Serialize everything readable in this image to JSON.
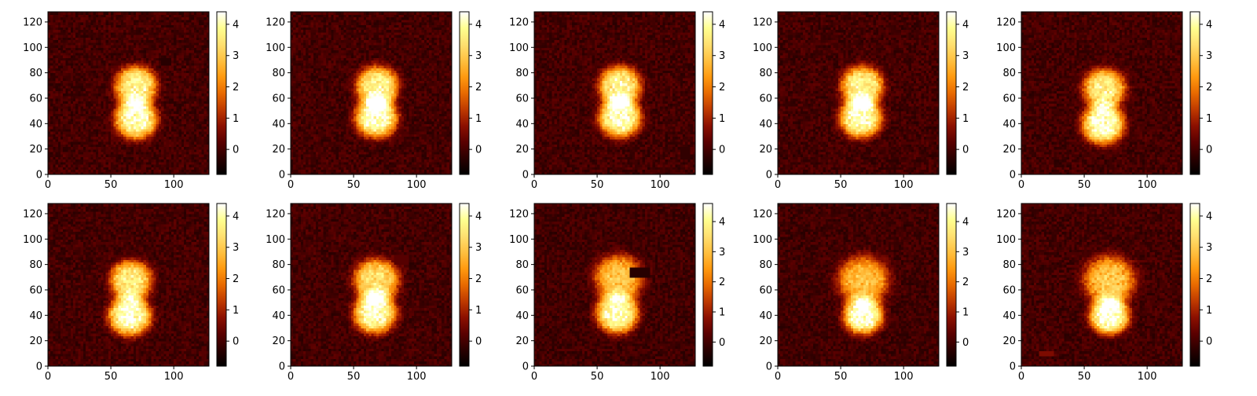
{
  "figure": {
    "cmap": [
      "#000000",
      "#2a0000",
      "#5a0000",
      "#8c1000",
      "#bf3a00",
      "#e86a00",
      "#ff9a10",
      "#ffc040",
      "#ffe070",
      "#ffff90",
      "#ffffff"
    ]
  },
  "chart_data": [
    {
      "type": "heatmap",
      "row": 0,
      "col": 0,
      "xlim": [
        0,
        128
      ],
      "ylim": [
        0,
        128
      ],
      "xticks": [
        0,
        50,
        100
      ],
      "yticks": [
        0,
        20,
        40,
        60,
        80,
        100,
        120
      ],
      "cbar_ticks": [
        0,
        1,
        2,
        3,
        4
      ],
      "clim": [
        -0.8,
        4.4
      ],
      "blobs": [
        {
          "x": 70,
          "y": 44,
          "sx": 14,
          "sy": 13,
          "amp": 4.2
        },
        {
          "x": 70,
          "y": 70,
          "sx": 14,
          "sy": 13,
          "amp": 3.8
        }
      ],
      "artifacts": [
        {
          "x0": 90,
          "x1": 98,
          "y0": 87,
          "y1": 91,
          "v": -0.3
        }
      ]
    },
    {
      "type": "heatmap",
      "row": 0,
      "col": 1,
      "xlim": [
        0,
        128
      ],
      "ylim": [
        0,
        128
      ],
      "xticks": [
        0,
        50,
        100
      ],
      "yticks": [
        0,
        20,
        40,
        60,
        80,
        100,
        120
      ],
      "cbar_ticks": [
        0,
        1,
        2,
        3,
        4
      ],
      "clim": [
        -0.8,
        4.4
      ],
      "blobs": [
        {
          "x": 68,
          "y": 45,
          "sx": 14,
          "sy": 13,
          "amp": 4.2
        },
        {
          "x": 69,
          "y": 70,
          "sx": 14,
          "sy": 13,
          "amp": 3.8
        }
      ],
      "artifacts": []
    },
    {
      "type": "heatmap",
      "row": 0,
      "col": 2,
      "xlim": [
        0,
        128
      ],
      "ylim": [
        0,
        128
      ],
      "xticks": [
        0,
        50,
        100
      ],
      "yticks": [
        0,
        20,
        40,
        60,
        80,
        100,
        120
      ],
      "cbar_ticks": [
        0,
        1,
        2,
        3,
        4
      ],
      "clim": [
        -0.8,
        4.4
      ],
      "blobs": [
        {
          "x": 68,
          "y": 45,
          "sx": 14,
          "sy": 13,
          "amp": 4.2
        },
        {
          "x": 68,
          "y": 70,
          "sx": 14,
          "sy": 13,
          "amp": 3.8
        }
      ],
      "artifacts": [
        {
          "x0": 117,
          "x1": 123,
          "y0": 13,
          "y1": 22,
          "v": -0.2
        }
      ]
    },
    {
      "type": "heatmap",
      "row": 0,
      "col": 3,
      "xlim": [
        0,
        128
      ],
      "ylim": [
        0,
        128
      ],
      "xticks": [
        0,
        50,
        100
      ],
      "yticks": [
        0,
        20,
        40,
        60,
        80,
        100,
        120
      ],
      "cbar_ticks": [
        0,
        1,
        2,
        3,
        4
      ],
      "clim": [
        -0.8,
        4.4
      ],
      "blobs": [
        {
          "x": 66,
          "y": 45,
          "sx": 14,
          "sy": 13,
          "amp": 4.2
        },
        {
          "x": 67,
          "y": 70,
          "sx": 14,
          "sy": 13,
          "amp": 3.8
        }
      ],
      "artifacts": []
    },
    {
      "type": "heatmap",
      "row": 0,
      "col": 4,
      "xlim": [
        0,
        128
      ],
      "ylim": [
        0,
        128
      ],
      "xticks": [
        0,
        50,
        100
      ],
      "yticks": [
        0,
        20,
        40,
        60,
        80,
        100,
        120
      ],
      "cbar_ticks": [
        0,
        1,
        2,
        3,
        4
      ],
      "clim": [
        -0.8,
        4.4
      ],
      "blobs": [
        {
          "x": 65,
          "y": 40,
          "sx": 14,
          "sy": 13,
          "amp": 4.3
        },
        {
          "x": 66,
          "y": 68,
          "sx": 14,
          "sy": 13,
          "amp": 3.7
        }
      ],
      "artifacts": []
    },
    {
      "type": "heatmap",
      "row": 1,
      "col": 0,
      "xlim": [
        0,
        128
      ],
      "ylim": [
        0,
        128
      ],
      "xticks": [
        0,
        50,
        100
      ],
      "yticks": [
        0,
        20,
        40,
        60,
        80,
        100,
        120
      ],
      "cbar_ticks": [
        0,
        1,
        2,
        3,
        4
      ],
      "clim": [
        -0.8,
        4.4
      ],
      "blobs": [
        {
          "x": 65,
          "y": 40,
          "sx": 14,
          "sy": 13,
          "amp": 4.3
        },
        {
          "x": 66,
          "y": 68,
          "sx": 14,
          "sy": 13,
          "amp": 3.6
        }
      ],
      "artifacts": []
    },
    {
      "type": "heatmap",
      "row": 1,
      "col": 1,
      "xlim": [
        0,
        128
      ],
      "ylim": [
        0,
        128
      ],
      "xticks": [
        0,
        50,
        100
      ],
      "yticks": [
        0,
        20,
        40,
        60,
        80,
        100,
        120
      ],
      "cbar_ticks": [
        0,
        1,
        2,
        3,
        4
      ],
      "clim": [
        -0.8,
        4.4
      ],
      "blobs": [
        {
          "x": 67,
          "y": 42,
          "sx": 14,
          "sy": 13,
          "amp": 4.2
        },
        {
          "x": 68,
          "y": 68,
          "sx": 15,
          "sy": 14,
          "amp": 3.4
        }
      ],
      "artifacts": [
        {
          "x0": 83,
          "x1": 93,
          "y0": 80,
          "y1": 87,
          "v": 0.2
        }
      ]
    },
    {
      "type": "heatmap",
      "row": 1,
      "col": 2,
      "xlim": [
        0,
        128
      ],
      "ylim": [
        0,
        128
      ],
      "xticks": [
        0,
        50,
        100
      ],
      "yticks": [
        0,
        20,
        40,
        60,
        80,
        100,
        120
      ],
      "cbar_ticks": [
        0,
        1,
        2,
        3,
        4
      ],
      "clim": [
        -0.8,
        4.6
      ],
      "blobs": [
        {
          "x": 66,
          "y": 42,
          "sx": 14,
          "sy": 13,
          "amp": 4.3
        },
        {
          "x": 67,
          "y": 70,
          "sx": 16,
          "sy": 15,
          "amp": 3.1
        }
      ],
      "artifacts": [
        {
          "x0": 76,
          "x1": 91,
          "y0": 70,
          "y1": 78,
          "v": -0.3
        }
      ]
    },
    {
      "type": "heatmap",
      "row": 1,
      "col": 3,
      "xlim": [
        0,
        128
      ],
      "ylim": [
        0,
        128
      ],
      "xticks": [
        0,
        50,
        100
      ],
      "yticks": [
        0,
        20,
        40,
        60,
        80,
        100,
        120
      ],
      "cbar_ticks": [
        0,
        1,
        2,
        3,
        4
      ],
      "clim": [
        -0.8,
        4.6
      ],
      "blobs": [
        {
          "x": 68,
          "y": 40,
          "sx": 13,
          "sy": 12,
          "amp": 4.5
        },
        {
          "x": 68,
          "y": 68,
          "sx": 17,
          "sy": 16,
          "amp": 3.0
        }
      ],
      "artifacts": []
    },
    {
      "type": "heatmap",
      "row": 1,
      "col": 4,
      "xlim": [
        0,
        128
      ],
      "ylim": [
        0,
        128
      ],
      "xticks": [
        0,
        50,
        100
      ],
      "yticks": [
        0,
        20,
        40,
        60,
        80,
        100,
        120
      ],
      "cbar_ticks": [
        0,
        1,
        2,
        3,
        4
      ],
      "clim": [
        -0.8,
        4.4
      ],
      "blobs": [
        {
          "x": 70,
          "y": 40,
          "sx": 13,
          "sy": 12,
          "amp": 4.4
        },
        {
          "x": 70,
          "y": 68,
          "sx": 17,
          "sy": 16,
          "amp": 3.0
        }
      ],
      "artifacts": [
        {
          "x0": 15,
          "x1": 25,
          "y0": 8,
          "y1": 11,
          "v": 0.6
        }
      ]
    }
  ]
}
